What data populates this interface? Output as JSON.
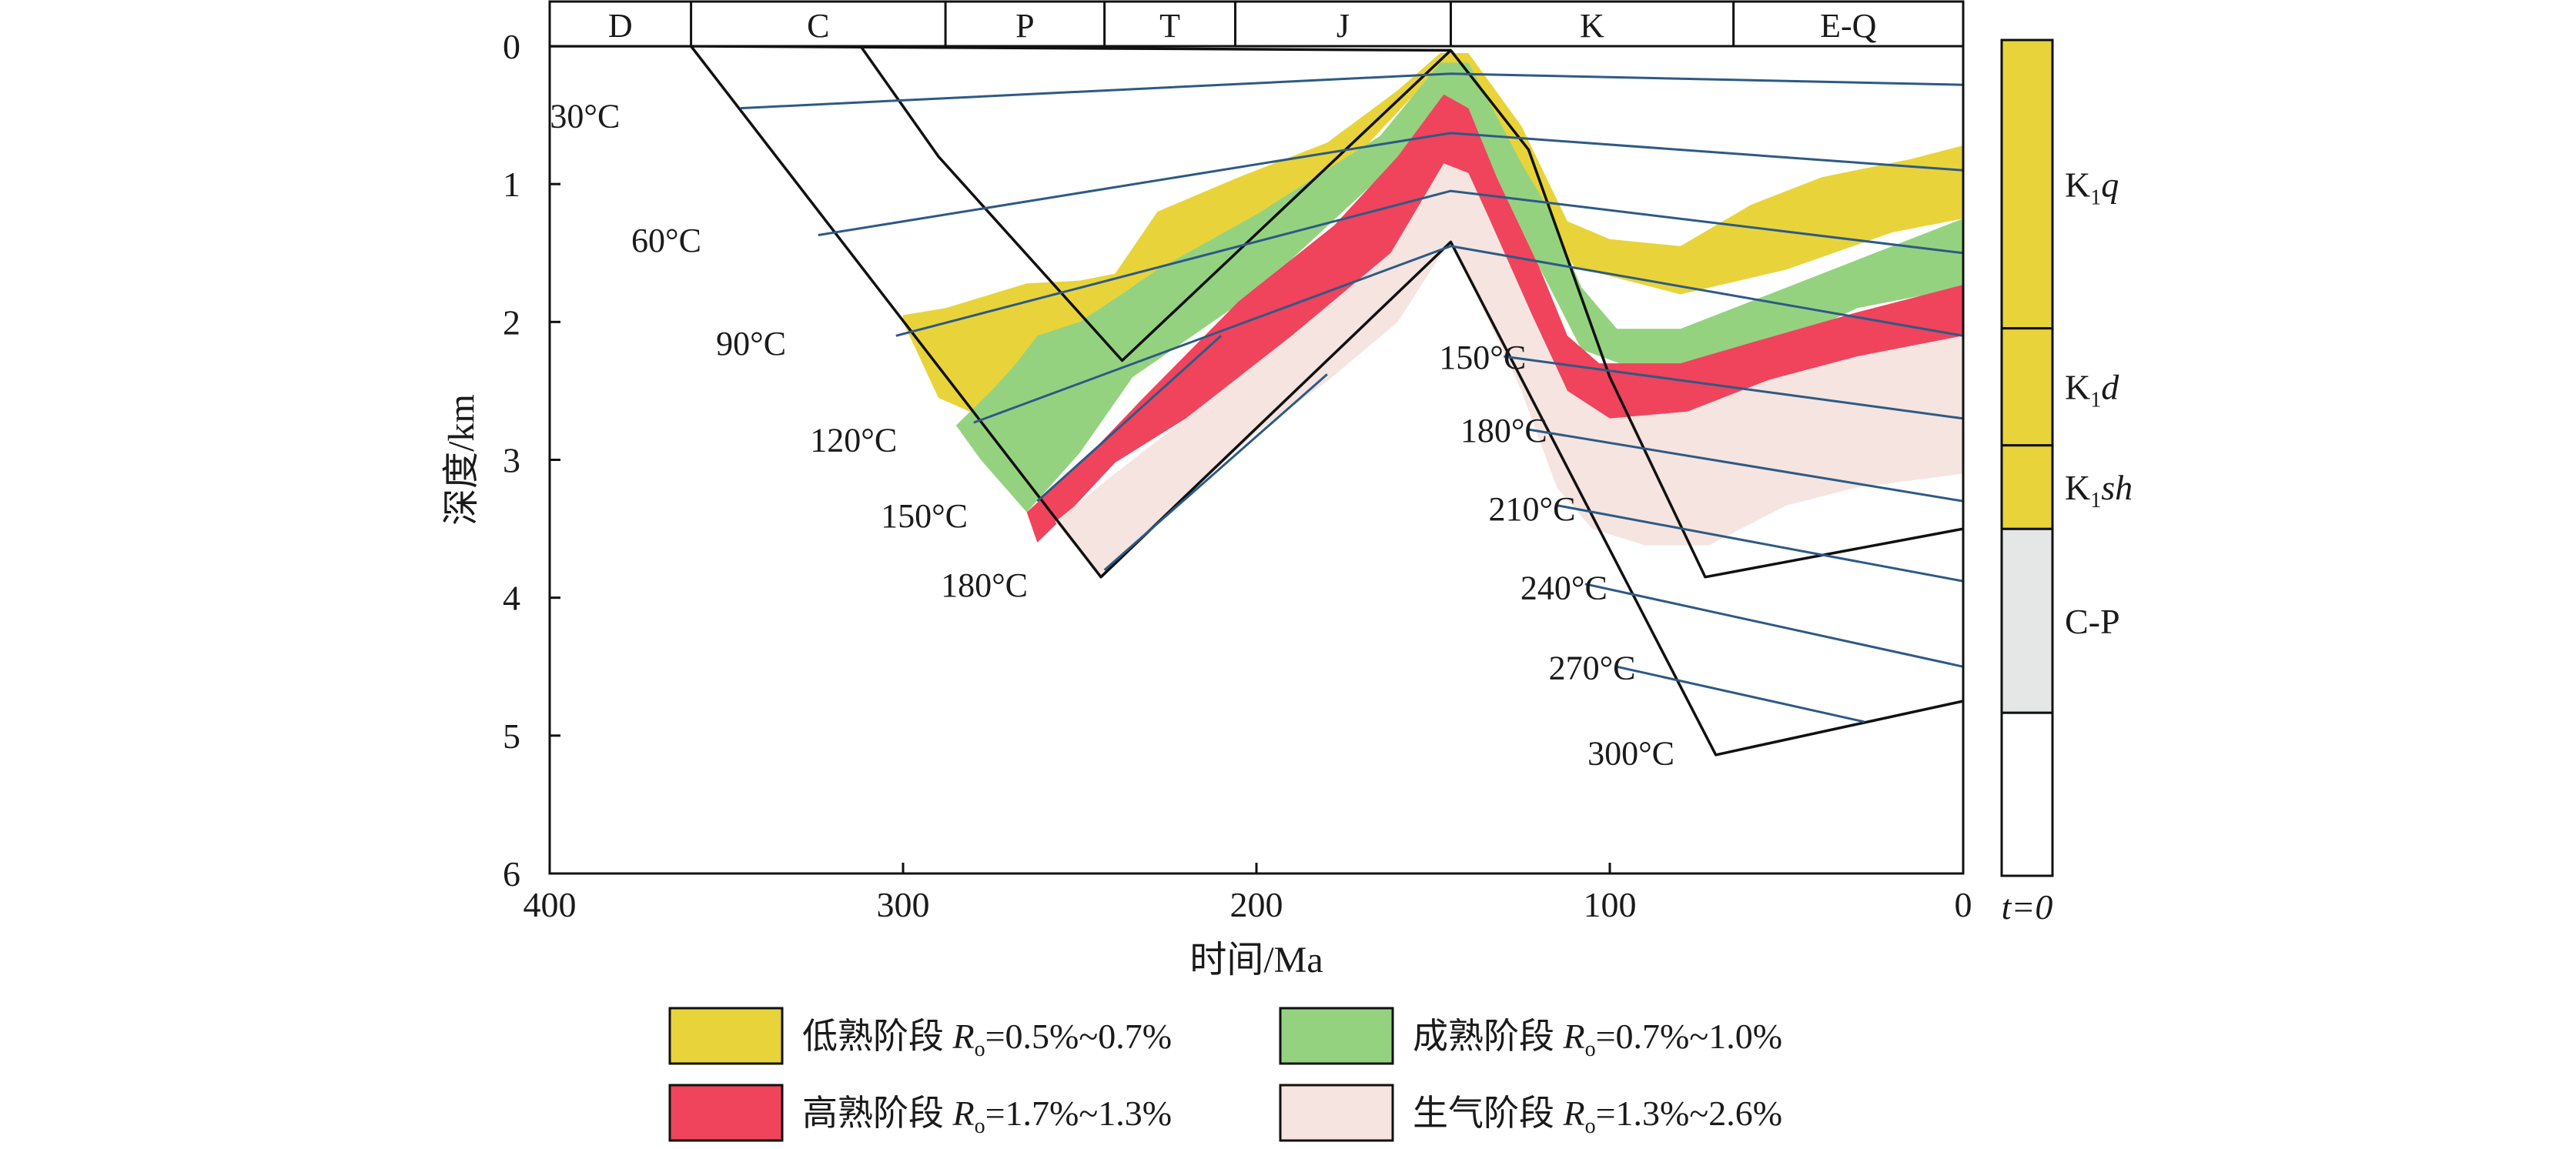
{
  "chart_data": {
    "type": "area",
    "xlabel": "时间/Ma",
    "ylabel": "深度/km",
    "xlim": [
      400,
      0
    ],
    "ylim": [
      0,
      6
    ],
    "xticks": [
      400,
      300,
      200,
      100,
      0
    ],
    "yticks": [
      0,
      1,
      2,
      3,
      4,
      5,
      6
    ],
    "grid": false,
    "legend_position": "bottom",
    "periods": [
      {
        "label": "D",
        "start": 400,
        "end": 360
      },
      {
        "label": "C",
        "start": 360,
        "end": 288
      },
      {
        "label": "P",
        "start": 288,
        "end": 243
      },
      {
        "label": "T",
        "start": 243,
        "end": 206
      },
      {
        "label": "J",
        "start": 206,
        "end": 145
      },
      {
        "label": "K",
        "start": 145,
        "end": 65
      },
      {
        "label": "E-Q",
        "start": 65,
        "end": 0
      }
    ],
    "burial_curves": [
      {
        "points": [
          [
            400,
            0
          ],
          [
            360,
            0
          ],
          [
            244,
            3.85
          ],
          [
            145,
            1.42
          ],
          [
            70,
            5.14
          ],
          [
            0,
            4.75
          ]
        ]
      },
      {
        "points": [
          [
            360,
            0
          ],
          [
            145,
            0.03
          ]
        ]
      },
      {
        "points": [
          [
            312,
            0
          ],
          [
            290,
            0.8
          ],
          [
            238,
            2.28
          ],
          [
            145,
            0.03
          ],
          [
            123,
            0.75
          ],
          [
            100,
            2.4
          ],
          [
            73,
            3.85
          ],
          [
            0,
            3.5
          ]
        ]
      }
    ],
    "isotherms": [
      {
        "label": "30°C",
        "label_position": [
          390,
          0.5
        ],
        "points": [
          [
            346,
            0.45
          ],
          [
            145,
            0.2
          ],
          [
            0,
            0.28
          ]
        ]
      },
      {
        "label": "60°C",
        "label_position": [
          367,
          1.4
        ],
        "points": [
          [
            324,
            1.37
          ],
          [
            145,
            0.63
          ],
          [
            0,
            0.9
          ]
        ]
      },
      {
        "label": "90°C",
        "label_position": [
          343,
          2.15
        ],
        "points": [
          [
            302,
            2.1
          ],
          [
            145,
            1.05
          ],
          [
            0,
            1.5
          ]
        ]
      },
      {
        "label": "120°C",
        "label_position": [
          314,
          2.85
        ],
        "points": [
          [
            280,
            2.73
          ],
          [
            145,
            1.45
          ],
          [
            0,
            2.1
          ]
        ]
      },
      {
        "label": "150°C",
        "label_position": [
          294,
          3.4
        ],
        "points": [
          [
            262,
            3.3
          ],
          [
            210,
            2.1
          ]
        ]
      },
      {
        "label": "180°C",
        "label_position": [
          277,
          3.9
        ],
        "points": [
          [
            243,
            3.8
          ],
          [
            180,
            2.38
          ]
        ]
      },
      {
        "label": "150°C",
        "label_position": [
          136,
          2.25
        ],
        "points": [
          [
            130,
            2.25
          ],
          [
            0,
            2.7
          ]
        ]
      },
      {
        "label": "180°C",
        "label_position": [
          130,
          2.78
        ],
        "points": [
          [
            123,
            2.78
          ],
          [
            0,
            3.3
          ]
        ]
      },
      {
        "label": "210°C",
        "label_position": [
          122,
          3.35
        ],
        "points": [
          [
            115,
            3.33
          ],
          [
            0,
            3.88
          ]
        ]
      },
      {
        "label": "240°C",
        "label_position": [
          113,
          3.92
        ],
        "points": [
          [
            107,
            3.9
          ],
          [
            0,
            4.5
          ]
        ]
      },
      {
        "label": "270°C",
        "label_position": [
          105,
          4.5
        ],
        "points": [
          [
            98,
            4.5
          ],
          [
            28,
            4.9
          ]
        ]
      },
      {
        "label": "300°C",
        "label_position": [
          94,
          5.12
        ],
        "points": []
      }
    ],
    "zones": [
      {
        "name": "低熟阶段 Ro=0.5%~0.7%",
        "color": "#e8d43a",
        "polygon": [
          [
            300,
            1.95
          ],
          [
            288,
            1.9
          ],
          [
            265,
            1.72
          ],
          [
            250,
            1.7
          ],
          [
            240,
            1.65
          ],
          [
            228,
            1.2
          ],
          [
            205,
            0.95
          ],
          [
            180,
            0.7
          ],
          [
            160,
            0.32
          ],
          [
            148,
            0.05
          ],
          [
            140,
            0.05
          ],
          [
            125,
            0.58
          ],
          [
            112,
            1.27
          ],
          [
            100,
            1.4
          ],
          [
            80,
            1.45
          ],
          [
            60,
            1.15
          ],
          [
            40,
            0.95
          ],
          [
            15,
            0.82
          ],
          [
            0,
            0.72
          ],
          [
            0,
            1.25
          ],
          [
            20,
            1.35
          ],
          [
            50,
            1.62
          ],
          [
            80,
            1.8
          ],
          [
            110,
            1.6
          ],
          [
            122,
            1.15
          ],
          [
            140,
            0.15
          ],
          [
            148,
            0.15
          ],
          [
            170,
            0.75
          ],
          [
            200,
            1.3
          ],
          [
            238,
            2.18
          ],
          [
            255,
            2.5
          ],
          [
            275,
            2.72
          ],
          [
            290,
            2.55
          ],
          [
            300,
            2.0
          ]
        ]
      },
      {
        "name": "成熟阶段 Ro=0.7%~1.0%",
        "color": "#95d280",
        "polygon": [
          [
            268,
            2.3
          ],
          [
            262,
            2.1
          ],
          [
            250,
            2.0
          ],
          [
            240,
            1.83
          ],
          [
            228,
            1.62
          ],
          [
            200,
            1.22
          ],
          [
            165,
            0.65
          ],
          [
            148,
            0.12
          ],
          [
            140,
            0.12
          ],
          [
            125,
            0.85
          ],
          [
            118,
            1.15
          ],
          [
            108,
            1.75
          ],
          [
            98,
            2.05
          ],
          [
            80,
            2.05
          ],
          [
            60,
            1.85
          ],
          [
            30,
            1.55
          ],
          [
            0,
            1.25
          ],
          [
            0,
            1.75
          ],
          [
            30,
            1.9
          ],
          [
            55,
            2.2
          ],
          [
            75,
            2.3
          ],
          [
            95,
            2.32
          ],
          [
            108,
            2.2
          ],
          [
            120,
            1.6
          ],
          [
            132,
            0.95
          ],
          [
            145,
            0.55
          ],
          [
            165,
            0.95
          ],
          [
            200,
            1.78
          ],
          [
            235,
            2.4
          ],
          [
            250,
            2.95
          ],
          [
            265,
            3.38
          ],
          [
            278,
            3.0
          ],
          [
            285,
            2.75
          ],
          [
            275,
            2.5
          ]
        ]
      },
      {
        "name": "高熟阶段 Ro=1.7%~1.3%",
        "color": "#f0435c",
        "polygon": [
          [
            265,
            3.38
          ],
          [
            248,
            2.98
          ],
          [
            232,
            2.55
          ],
          [
            205,
            1.85
          ],
          [
            178,
            1.3
          ],
          [
            160,
            0.8
          ],
          [
            147,
            0.35
          ],
          [
            140,
            0.45
          ],
          [
            132,
            0.95
          ],
          [
            120,
            1.6
          ],
          [
            112,
            2.1
          ],
          [
            103,
            2.3
          ],
          [
            80,
            2.3
          ],
          [
            60,
            2.15
          ],
          [
            30,
            1.93
          ],
          [
            0,
            1.73
          ],
          [
            0,
            2.1
          ],
          [
            30,
            2.25
          ],
          [
            55,
            2.42
          ],
          [
            78,
            2.65
          ],
          [
            100,
            2.7
          ],
          [
            112,
            2.5
          ],
          [
            122,
            1.95
          ],
          [
            135,
            1.2
          ],
          [
            145,
            0.9
          ],
          [
            162,
            1.5
          ],
          [
            190,
            2.1
          ],
          [
            220,
            2.7
          ],
          [
            240,
            3.02
          ],
          [
            252,
            3.35
          ],
          [
            262,
            3.6
          ]
        ]
      },
      {
        "name": "生气阶段 Ro=1.3%~2.6%",
        "color": "#f5e4df",
        "polygon": [
          [
            257,
            3.45
          ],
          [
            240,
            3.1
          ],
          [
            220,
            2.7
          ],
          [
            190,
            2.1
          ],
          [
            162,
            1.5
          ],
          [
            147,
            0.85
          ],
          [
            140,
            0.92
          ],
          [
            135,
            1.2
          ],
          [
            122,
            1.95
          ],
          [
            112,
            2.5
          ],
          [
            100,
            2.7
          ],
          [
            78,
            2.65
          ],
          [
            55,
            2.42
          ],
          [
            30,
            2.25
          ],
          [
            0,
            2.1
          ],
          [
            0,
            3.1
          ],
          [
            30,
            3.2
          ],
          [
            50,
            3.33
          ],
          [
            72,
            3.62
          ],
          [
            90,
            3.62
          ],
          [
            105,
            3.5
          ],
          [
            115,
            3.2
          ],
          [
            125,
            2.5
          ],
          [
            145,
            1.4
          ],
          [
            160,
            2.0
          ],
          [
            180,
            2.43
          ],
          [
            200,
            2.8
          ],
          [
            232,
            3.55
          ],
          [
            244,
            3.85
          ]
        ]
      }
    ],
    "legend": [
      {
        "label": "低熟阶段",
        "var": "R",
        "sub": "o",
        "range": "=0.5%~0.7%",
        "color": "#e8d43a"
      },
      {
        "label": "成熟阶段",
        "var": "R",
        "sub": "o",
        "range": "=0.7%~1.0%",
        "color": "#95d280"
      },
      {
        "label": "高熟阶段",
        "var": "R",
        "sub": "o",
        "range": "=1.7%~1.3%",
        "color": "#f0435c"
      },
      {
        "label": "生气阶段",
        "var": "R",
        "sub": "o",
        "range": "=1.3%~2.6%",
        "color": "#f5e4df"
      }
    ],
    "stratigraphic_column": {
      "units": [
        {
          "base": "K",
          "sub": "1",
          "tail": "q",
          "color": "#e8d43a",
          "top": 0.0,
          "bottom": 0.345
        },
        {
          "base": "K",
          "sub": "1",
          "tail": "d",
          "color": "#e8d43a",
          "top": 0.345,
          "bottom": 0.485
        },
        {
          "base": "K",
          "sub": "1",
          "tail": "sh",
          "color": "#e8d43a",
          "top": 0.485,
          "bottom": 0.585
        },
        {
          "base": "C-P",
          "sub": "",
          "tail": "",
          "color": "#e5e7e7",
          "top": 0.585,
          "bottom": 0.805
        },
        {
          "base": "",
          "sub": "",
          "tail": "",
          "color": "#ffffff",
          "top": 0.805,
          "bottom": 1.0
        }
      ],
      "footer": "t=0"
    }
  }
}
